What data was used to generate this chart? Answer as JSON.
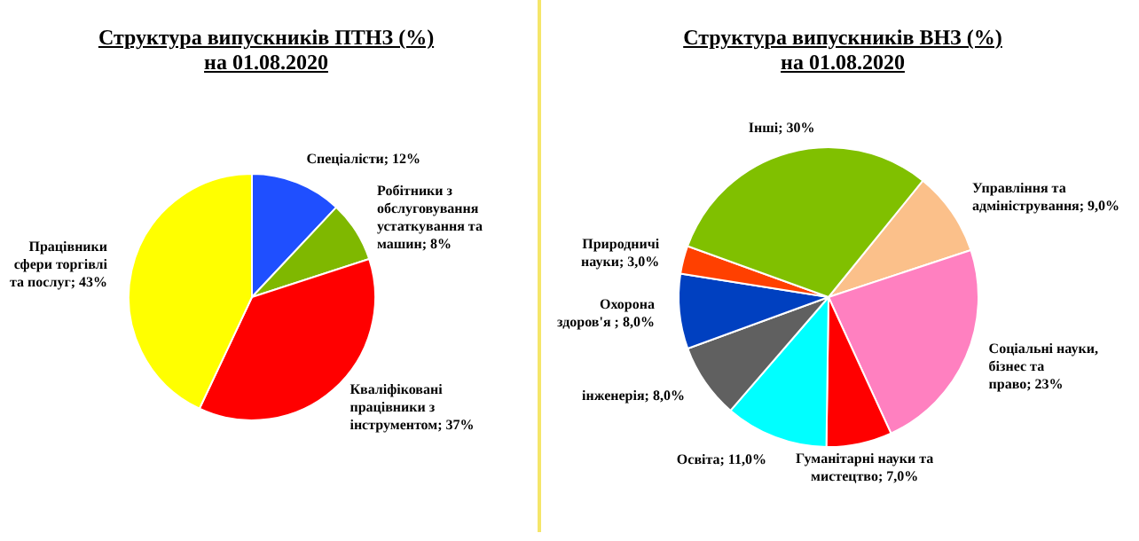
{
  "chart_data": [
    {
      "type": "pie",
      "title": "Структура випускників ПТНЗ (%)",
      "subtitle": "на 01.08.2020",
      "legend": false,
      "categories": [
        "Спеціалісти",
        "Робітники з обслуговування устаткування та машин",
        "Кваліфіковані працівники з інструментом",
        "Працівники сфери торгівлі та послуг"
      ],
      "values": [
        12,
        8,
        37,
        43
      ],
      "value_labels": [
        "12%",
        "8%",
        "37%",
        "43%"
      ],
      "colors": [
        "#1f4fff",
        "#7fb800",
        "#ff0000",
        "#ffff00"
      ]
    },
    {
      "type": "pie",
      "title": "Структура випускників ВНЗ (%)",
      "subtitle": "на 01.08.2020",
      "legend": false,
      "categories": [
        "Управління та адміністрування",
        "Соціальні науки, бізнес та право",
        "Гуманітарні науки та мистецтво",
        "Освіта",
        "інженерія",
        "Охорона здоров'я ",
        "Природничі науки",
        "Інші"
      ],
      "values": [
        9.0,
        23,
        7.0,
        11.0,
        8.0,
        8.0,
        3.0,
        30
      ],
      "value_labels": [
        "9,0%",
        "23%",
        "7,0%",
        "11,0%",
        "8,0%",
        "8,0%",
        "3,0%",
        "30%"
      ],
      "colors": [
        "#fbc08a",
        "#ff80c0",
        "#ff0000",
        "#00ffff",
        "#606060",
        "#0040c0",
        "#ff4000",
        "#80c000"
      ]
    }
  ]
}
